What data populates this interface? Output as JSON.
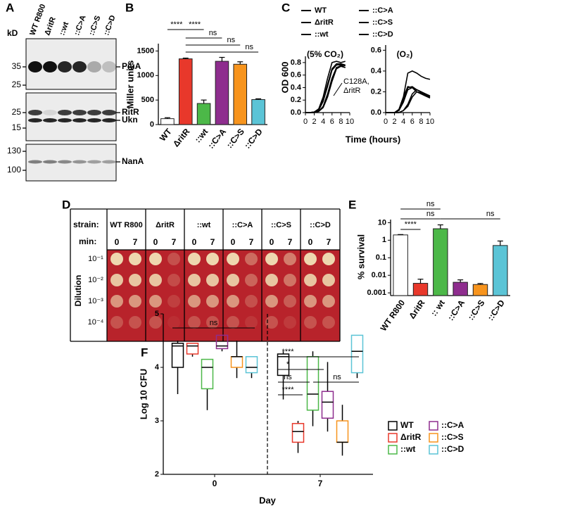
{
  "panel_labels": [
    "A",
    "B",
    "C",
    "D",
    "E",
    "F"
  ],
  "blot": {
    "kd": "kD",
    "lanes": [
      "WT R800",
      "ΔritR",
      "::wt",
      "::C>A",
      "::C>S",
      "::C>D"
    ],
    "boxes": [
      {
        "markers": [
          35,
          25
        ],
        "bands": [
          "PiuA"
        ]
      },
      {
        "markers": [
          25,
          15
        ],
        "bands": [
          "RitR",
          "Ukn"
        ]
      },
      {
        "markers": [
          130,
          100
        ],
        "bands": [
          "NanA"
        ]
      }
    ]
  },
  "plate": {
    "strain_label": "strain:",
    "min_label": "min:",
    "dilution_label": "Dilution",
    "strains": [
      "WT R800",
      "ΔritR",
      "::wt",
      "::C>A",
      "::C>S",
      "::C>D"
    ],
    "times": [
      0,
      7
    ],
    "dilutions": [
      "10⁻¹",
      "10⁻²",
      "10⁻³",
      "10⁻⁴"
    ]
  },
  "chart_data": [
    {
      "type": "bar",
      "ylabel": "Miller units",
      "categories": [
        "WT",
        "ΔritR",
        "::wt",
        "::C>A",
        "::C>S",
        "::C>D"
      ],
      "values": [
        120,
        1340,
        430,
        1290,
        1230,
        510
      ],
      "errors": [
        20,
        15,
        70,
        80,
        50,
        15
      ],
      "colors": [
        "#ffffff",
        "#e8382b",
        "#4cb848",
        "#8e2d8e",
        "#f7941d",
        "#5bc4d6"
      ],
      "ylim": [
        0,
        1650
      ],
      "yticks": [
        0,
        500,
        1000,
        1500
      ],
      "annotations": [
        "****",
        "****",
        "ns",
        "ns",
        "ns"
      ]
    },
    {
      "type": "line",
      "title": "(5% CO₂)",
      "xlabel": "Time (hours)",
      "ylabel": "OD 600",
      "annotation": [
        "C128A,",
        "ΔritR"
      ],
      "x": [
        0,
        1,
        2,
        3,
        4,
        5,
        6,
        7,
        8,
        9
      ],
      "series": [
        {
          "name": "WT",
          "color": "#000000",
          "values": [
            0,
            0,
            0.01,
            0.05,
            0.2,
            0.45,
            0.7,
            0.78,
            0.78,
            0.76
          ]
        },
        {
          "name": "ΔritR",
          "color": "#e8382b",
          "values": [
            0,
            0,
            0,
            0.02,
            0.1,
            0.3,
            0.55,
            0.72,
            0.75,
            0.72
          ]
        },
        {
          "name": "::wt",
          "color": "#4cb848",
          "values": [
            0,
            0,
            0.01,
            0.04,
            0.18,
            0.42,
            0.68,
            0.76,
            0.77,
            0.75
          ]
        },
        {
          "name": "::C>A",
          "color": "#8e2d8e",
          "values": [
            0,
            0,
            0,
            0.02,
            0.08,
            0.25,
            0.5,
            0.7,
            0.74,
            0.72
          ]
        },
        {
          "name": "::C>S",
          "color": "#f7941d",
          "values": [
            0,
            0,
            0.01,
            0.05,
            0.2,
            0.45,
            0.7,
            0.77,
            0.76,
            0.75
          ]
        },
        {
          "name": "::C>D",
          "color": "#5bc4d6",
          "values": [
            0,
            0,
            0.01,
            0.06,
            0.25,
            0.55,
            0.8,
            0.82,
            0.8,
            0.82
          ]
        }
      ],
      "xlim": [
        0,
        10
      ],
      "xticks": [
        0,
        2,
        4,
        6,
        8,
        10
      ],
      "ylim": [
        0,
        0.9
      ],
      "yticks": [
        {
          "value": 0,
          "label": "0.0"
        },
        0.2,
        0.4,
        0.6,
        0.8
      ]
    },
    {
      "type": "line",
      "title": "(O₂)",
      "x": [
        0,
        1,
        2,
        3,
        4,
        5,
        6,
        7,
        8,
        9,
        10
      ],
      "series": [
        {
          "color": "#000000",
          "values": [
            0,
            0,
            0,
            0.02,
            0.12,
            0.24,
            0.25,
            0.22,
            0.2,
            0.17,
            0.15
          ]
        },
        {
          "color": "#e8382b",
          "values": [
            0,
            0,
            0,
            0,
            0.02,
            0.08,
            0.18,
            0.22,
            0.2,
            0.18,
            0.16
          ]
        },
        {
          "color": "#4cb848",
          "values": [
            0,
            0,
            0,
            0.02,
            0.1,
            0.22,
            0.24,
            0.22,
            0.2,
            0.18,
            0.16
          ]
        },
        {
          "color": "#8e2d8e",
          "values": [
            0,
            0,
            0,
            0,
            0.02,
            0.06,
            0.15,
            0.2,
            0.19,
            0.17,
            0.15
          ]
        },
        {
          "color": "#f7941d",
          "values": [
            0,
            0,
            0,
            0.03,
            0.15,
            0.25,
            0.24,
            0.2,
            0.18,
            0.16,
            0.14
          ]
        },
        {
          "color": "#5bc4d6",
          "values": [
            0,
            0,
            0,
            0.03,
            0.15,
            0.38,
            0.4,
            0.38,
            0.35,
            0.33,
            0.32
          ]
        }
      ],
      "xlim": [
        0,
        10
      ],
      "xticks": [
        0,
        2,
        4,
        6,
        8,
        10
      ],
      "ylim": [
        0,
        0.65
      ],
      "yticks": [
        {
          "value": 0,
          "label": "0.0"
        },
        0.2,
        0.4,
        0.6
      ]
    },
    {
      "type": "bar",
      "ylabel": "% survival",
      "log_scale": true,
      "categories": [
        "WT R800",
        "ΔritR",
        ":: wt",
        "::C>A",
        "::C>S",
        "::C>D"
      ],
      "values": [
        2,
        0.0035,
        4.5,
        0.004,
        0.003,
        0.5
      ],
      "errors": [
        0.1,
        0.0025,
        3,
        0.0015,
        0.0004,
        0.4
      ],
      "colors": [
        "#ffffff",
        "#e8382b",
        "#4cb848",
        "#8e2d8e",
        "#f7941d",
        "#5bc4d6"
      ],
      "ylim": [
        0.0007,
        15
      ],
      "yticks": [
        0.001,
        0.01,
        0.1,
        1,
        10
      ],
      "annotations": [
        "****",
        "ns",
        "ns",
        "ns"
      ]
    },
    {
      "type": "box",
      "xlabel": "Day",
      "ylabel": "Log 10 CFU",
      "categories": [
        "0",
        "7"
      ],
      "series": [
        {
          "name": "WT",
          "color": "#000000",
          "min": [
            3.5,
            3.4
          ],
          "q1": [
            4.0,
            3.85
          ],
          "median": [
            4.4,
            4.2
          ],
          "q3": [
            4.45,
            4.25
          ],
          "max": [
            4.5,
            4.3
          ]
        },
        {
          "name": "ΔritR",
          "color": "#e8382b",
          "min": [
            4.2,
            2.4
          ],
          "q1": [
            4.25,
            2.6
          ],
          "median": [
            4.4,
            2.8
          ],
          "q3": [
            4.45,
            2.95
          ],
          "max": [
            4.45,
            3.0
          ]
        },
        {
          "name": "::wt",
          "color": "#4cb848",
          "min": [
            3.2,
            2.9
          ],
          "q1": [
            3.6,
            3.2
          ],
          "median": [
            4.0,
            3.5
          ],
          "q3": [
            4.15,
            4.2
          ],
          "max": [
            4.15,
            4.3
          ]
        },
        {
          "name": "::C>A",
          "color": "#8e2d8e",
          "min": [
            4.3,
            2.8
          ],
          "q1": [
            4.35,
            3.05
          ],
          "median": [
            4.4,
            3.35
          ],
          "q3": [
            4.6,
            3.55
          ],
          "max": [
            4.6,
            4.1
          ]
        },
        {
          "name": "::C>S",
          "color": "#f7941d",
          "min": [
            3.8,
            2.35
          ],
          "q1": [
            4.0,
            2.6
          ],
          "median": [
            4.2,
            2.6
          ],
          "q3": [
            4.2,
            3.0
          ],
          "max": [
            4.5,
            3.3
          ]
        },
        {
          "name": "::C>D",
          "color": "#5bc4d6",
          "min": [
            3.8,
            3.8
          ],
          "q1": [
            3.9,
            3.9
          ],
          "median": [
            4.0,
            4.3
          ],
          "q3": [
            4.2,
            4.6
          ],
          "max": [
            4.2,
            4.6
          ]
        }
      ],
      "ylim": [
        2,
        5
      ],
      "yticks": [
        2,
        3,
        4,
        5
      ],
      "annotations": [
        "ns",
        "****",
        "*",
        "ns",
        "ns",
        "****"
      ]
    }
  ]
}
